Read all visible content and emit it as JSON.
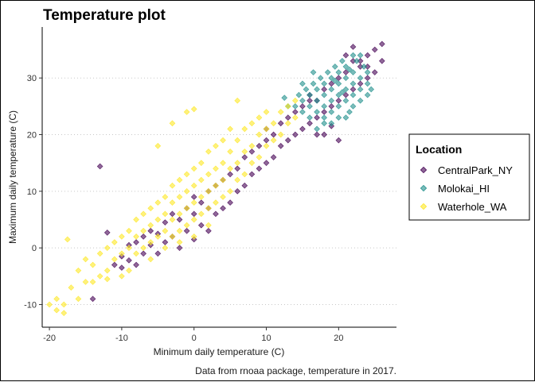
{
  "chart_data": {
    "type": "scatter",
    "title": "Temperature plot",
    "xlabel": "Minimum daily temperature (C)",
    "ylabel": "Maximum daily temperature (C)",
    "caption": "Data from rnoaa package, temperature in 2017.",
    "xlim": [
      -21,
      28
    ],
    "ylim": [
      -14,
      39
    ],
    "x_ticks": [
      -20,
      -10,
      0,
      10,
      20
    ],
    "y_ticks": [
      -10,
      0,
      10,
      20,
      30
    ],
    "grid": "dotted horizontal major",
    "legend_position": "right",
    "legend_title": "Location",
    "point_shape": "diamond",
    "point_alpha": 0.6,
    "series": [
      {
        "name": "CentralPark_NY",
        "color": "#440154",
        "points": [
          [
            -14,
            -9
          ],
          [
            -13,
            14.4
          ],
          [
            -12,
            2.7
          ],
          [
            -11,
            -3
          ],
          [
            -10,
            -3.5
          ],
          [
            -10,
            -1.5
          ],
          [
            -9,
            -2.2
          ],
          [
            -9,
            0.5
          ],
          [
            -8,
            1
          ],
          [
            -8,
            -3
          ],
          [
            -7,
            -1
          ],
          [
            -7,
            2
          ],
          [
            -6,
            0.5
          ],
          [
            -6,
            3
          ],
          [
            -5,
            -1
          ],
          [
            -5,
            2.5
          ],
          [
            -4,
            1
          ],
          [
            -4,
            4.5
          ],
          [
            -3,
            2
          ],
          [
            -3,
            6
          ],
          [
            -2,
            0
          ],
          [
            -2,
            5
          ],
          [
            -1,
            3
          ],
          [
            -1,
            7
          ],
          [
            0,
            1.5
          ],
          [
            0,
            6
          ],
          [
            0,
            9
          ],
          [
            1,
            4
          ],
          [
            1,
            8
          ],
          [
            2,
            3
          ],
          [
            2,
            7
          ],
          [
            2,
            10
          ],
          [
            3,
            6
          ],
          [
            3,
            11
          ],
          [
            4,
            7
          ],
          [
            4,
            12
          ],
          [
            5,
            8
          ],
          [
            5,
            13
          ],
          [
            6,
            10
          ],
          [
            6,
            14
          ],
          [
            7,
            11
          ],
          [
            7,
            16
          ],
          [
            8,
            13
          ],
          [
            8,
            17
          ],
          [
            9,
            14
          ],
          [
            9,
            18
          ],
          [
            10,
            15
          ],
          [
            10,
            19
          ],
          [
            10,
            21
          ],
          [
            11,
            16
          ],
          [
            11,
            20
          ],
          [
            12,
            18
          ],
          [
            12,
            22
          ],
          [
            13,
            19
          ],
          [
            13,
            23
          ],
          [
            14,
            20
          ],
          [
            14,
            24
          ],
          [
            15,
            21
          ],
          [
            15,
            25
          ],
          [
            16,
            22
          ],
          [
            16,
            27
          ],
          [
            17,
            23
          ],
          [
            17,
            26
          ],
          [
            18,
            24
          ],
          [
            18,
            28
          ],
          [
            19,
            25
          ],
          [
            19,
            29
          ],
          [
            20,
            26
          ],
          [
            20,
            30
          ],
          [
            21,
            27
          ],
          [
            21,
            31
          ],
          [
            22,
            28
          ],
          [
            22,
            33
          ],
          [
            23,
            29
          ],
          [
            23,
            32
          ],
          [
            24,
            30
          ],
          [
            24,
            34
          ],
          [
            25,
            31
          ],
          [
            25,
            35
          ],
          [
            26,
            33
          ],
          [
            18,
            20
          ],
          [
            19,
            21.5
          ],
          [
            20,
            19
          ],
          [
            17,
            20
          ],
          [
            22,
            35.5
          ],
          [
            23,
            33
          ],
          [
            26,
            36
          ],
          [
            16,
            26
          ],
          [
            24,
            32
          ],
          [
            21,
            34
          ]
        ]
      },
      {
        "name": "Molokai_HI",
        "color": "#21908C",
        "points": [
          [
            14,
            25
          ],
          [
            14.5,
            27
          ],
          [
            15,
            26
          ],
          [
            15.5,
            28
          ],
          [
            16,
            25
          ],
          [
            16,
            27
          ],
          [
            16.5,
            29
          ],
          [
            17,
            26
          ],
          [
            17,
            28
          ],
          [
            17.5,
            30
          ],
          [
            18,
            25
          ],
          [
            18,
            27
          ],
          [
            18,
            29
          ],
          [
            18.5,
            31
          ],
          [
            19,
            26
          ],
          [
            19,
            28
          ],
          [
            19,
            30
          ],
          [
            19.5,
            32
          ],
          [
            20,
            25
          ],
          [
            20,
            27
          ],
          [
            20,
            29
          ],
          [
            20,
            31
          ],
          [
            20.5,
            33
          ],
          [
            21,
            26
          ],
          [
            21,
            28
          ],
          [
            21,
            30
          ],
          [
            21,
            32
          ],
          [
            21.5,
            24
          ],
          [
            22,
            27
          ],
          [
            22,
            29
          ],
          [
            22,
            31
          ],
          [
            22.5,
            33
          ],
          [
            23,
            26
          ],
          [
            23,
            28
          ],
          [
            23,
            30
          ],
          [
            23.5,
            32
          ],
          [
            24,
            27
          ],
          [
            24,
            29
          ],
          [
            24,
            31
          ],
          [
            18,
            22
          ],
          [
            17,
            21
          ],
          [
            19,
            22
          ],
          [
            20,
            23
          ],
          [
            16,
            23
          ],
          [
            15,
            24
          ],
          [
            21,
            23
          ],
          [
            22,
            25
          ],
          [
            19,
            24
          ],
          [
            17,
            24
          ],
          [
            18,
            23
          ],
          [
            23,
            34
          ],
          [
            22,
            34
          ],
          [
            13,
            25
          ],
          [
            12.5,
            26.5
          ],
          [
            24.5,
            28
          ],
          [
            20.5,
            27.5
          ],
          [
            19.5,
            29.5
          ],
          [
            16.5,
            31
          ],
          [
            15,
            29
          ],
          [
            21.5,
            31.5
          ]
        ]
      },
      {
        "name": "Waterhole_WA",
        "color": "#FDE725",
        "points": [
          [
            -20,
            -10
          ],
          [
            -19,
            -11
          ],
          [
            -19,
            -9
          ],
          [
            -18,
            -10
          ],
          [
            -17.5,
            1.5
          ],
          [
            -17,
            -7
          ],
          [
            -16,
            -4
          ],
          [
            -15,
            -2
          ],
          [
            -15,
            -6
          ],
          [
            -14,
            -3
          ],
          [
            -13,
            -5
          ],
          [
            -13,
            -1
          ],
          [
            -12,
            -4
          ],
          [
            -12,
            0
          ],
          [
            -11,
            -2
          ],
          [
            -11,
            1
          ],
          [
            -10,
            -1
          ],
          [
            -10,
            2
          ],
          [
            -9,
            0
          ],
          [
            -9,
            3
          ],
          [
            -8,
            -1
          ],
          [
            -8,
            2
          ],
          [
            -8,
            5
          ],
          [
            -7,
            0
          ],
          [
            -7,
            3
          ],
          [
            -7,
            6
          ],
          [
            -6,
            1
          ],
          [
            -6,
            4
          ],
          [
            -6,
            7
          ],
          [
            -5,
            2
          ],
          [
            -5,
            5
          ],
          [
            -5,
            8
          ],
          [
            -4,
            3
          ],
          [
            -4,
            6
          ],
          [
            -4,
            9
          ],
          [
            -3,
            2
          ],
          [
            -3,
            5
          ],
          [
            -3,
            8
          ],
          [
            -3,
            11
          ],
          [
            -2,
            3
          ],
          [
            -2,
            6
          ],
          [
            -2,
            9
          ],
          [
            -2,
            12
          ],
          [
            -1,
            4
          ],
          [
            -1,
            7
          ],
          [
            -1,
            10
          ],
          [
            -1,
            13
          ],
          [
            0,
            2
          ],
          [
            0,
            5
          ],
          [
            0,
            8
          ],
          [
            0,
            11
          ],
          [
            0,
            14
          ],
          [
            1,
            6
          ],
          [
            1,
            9
          ],
          [
            1,
            12
          ],
          [
            1,
            15
          ],
          [
            2,
            7
          ],
          [
            2,
            10
          ],
          [
            2,
            13
          ],
          [
            2,
            17
          ],
          [
            3,
            8
          ],
          [
            3,
            11
          ],
          [
            3,
            14
          ],
          [
            3,
            18
          ],
          [
            4,
            9
          ],
          [
            4,
            12
          ],
          [
            4,
            15
          ],
          [
            4,
            19
          ],
          [
            5,
            10
          ],
          [
            5,
            14
          ],
          [
            5,
            17
          ],
          [
            5,
            21
          ],
          [
            6,
            12
          ],
          [
            6,
            15
          ],
          [
            6,
            19
          ],
          [
            7,
            13
          ],
          [
            7,
            17
          ],
          [
            7,
            21
          ],
          [
            8,
            15
          ],
          [
            8,
            18
          ],
          [
            8,
            22
          ],
          [
            9,
            16
          ],
          [
            9,
            20
          ],
          [
            9,
            23
          ],
          [
            10,
            18
          ],
          [
            10,
            21
          ],
          [
            10,
            24
          ],
          [
            11,
            19
          ],
          [
            11,
            22
          ],
          [
            12,
            20
          ],
          [
            12,
            24
          ],
          [
            13,
            22
          ],
          [
            13,
            25
          ],
          [
            14,
            23
          ],
          [
            14,
            26
          ],
          [
            0,
            24.5
          ],
          [
            -1,
            24
          ],
          [
            -3,
            22
          ],
          [
            -5,
            18
          ],
          [
            6,
            26
          ],
          [
            -9,
            -4
          ],
          [
            -10,
            -5
          ],
          [
            -12,
            -5.5
          ],
          [
            -14,
            -6
          ],
          [
            -16,
            -9
          ],
          [
            -18,
            -11.5
          ],
          [
            -6,
            -2
          ],
          [
            -4,
            0
          ],
          [
            -2,
            1
          ],
          [
            2,
            4
          ]
        ]
      }
    ]
  }
}
